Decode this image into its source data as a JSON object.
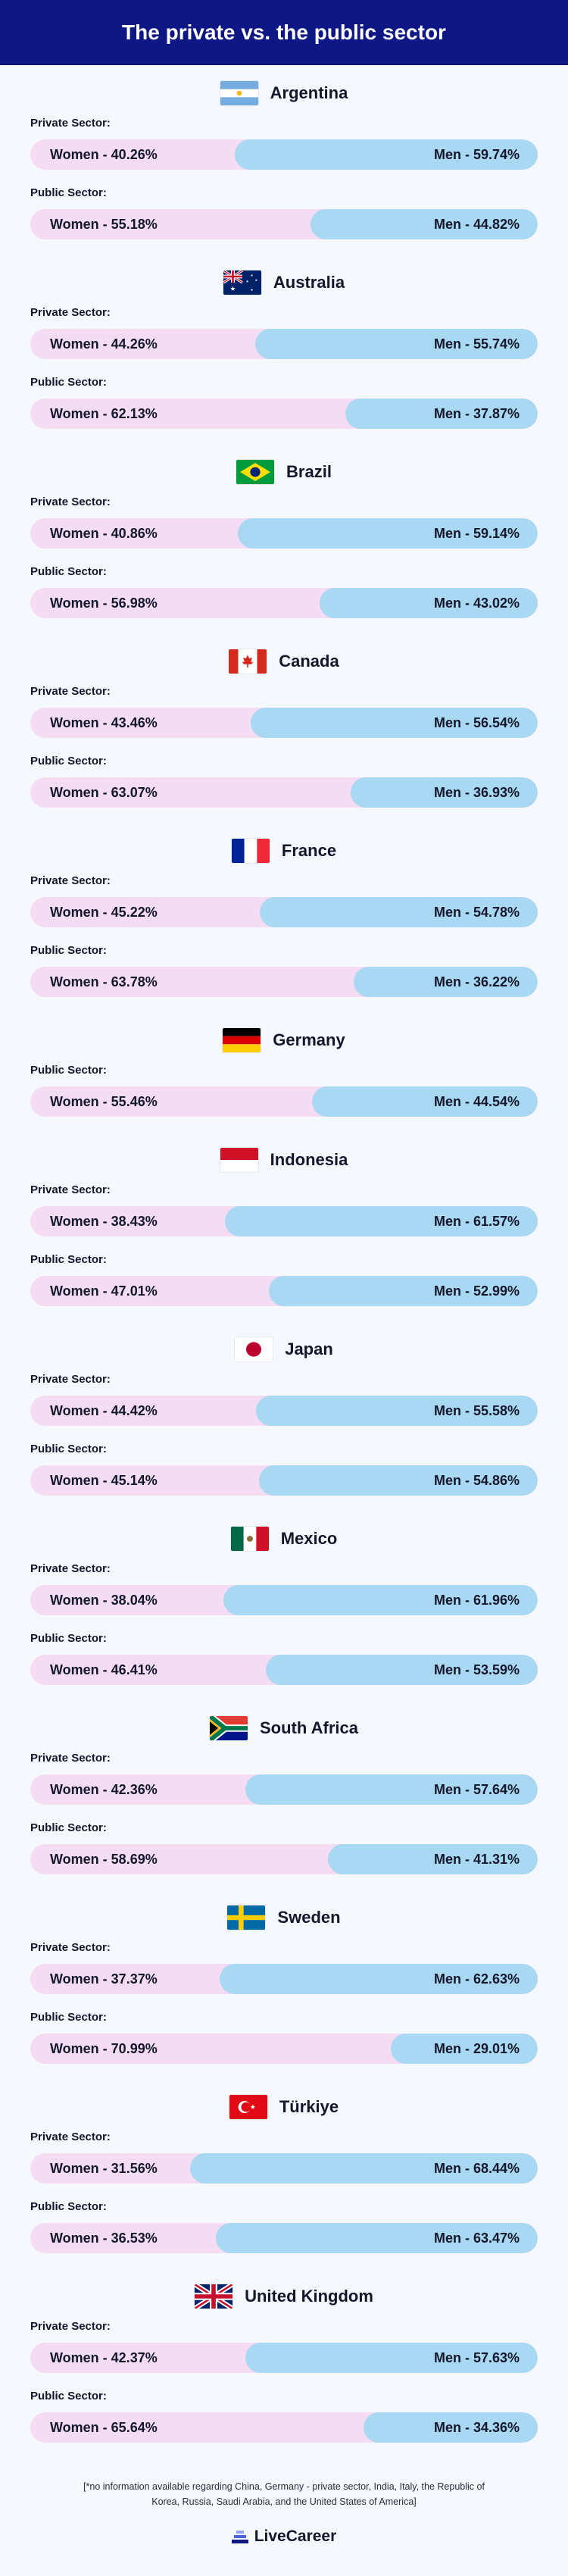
{
  "title": "The private vs. the public sector",
  "footnote": "[*no information available regarding China, Germany - private sector, India, Italy, the Republic of Korea, Russia, Saudi Arabia, and the United States of America]",
  "brand": "LiveCareer",
  "colors": {
    "header": "#0f1785",
    "women": "#f4dcf4",
    "men": "#a8d8f2",
    "background": "#f5f8fd"
  },
  "chart_data": {
    "type": "bar",
    "title": "The private vs. the public sector",
    "series_names": [
      "Women",
      "Men"
    ],
    "countries": [
      {
        "name": "Argentina",
        "flag": "argentina-flag",
        "sectors": [
          {
            "label": "Private Sector:",
            "women": 40.26,
            "men": 59.74,
            "women_text": "Women - 40.26%",
            "men_text": "Men - 59.74%"
          },
          {
            "label": "Public Sector:",
            "women": 55.18,
            "men": 44.82,
            "women_text": "Women - 55.18%",
            "men_text": "Men - 44.82%"
          }
        ]
      },
      {
        "name": "Australia",
        "flag": "australia-flag",
        "sectors": [
          {
            "label": "Private Sector:",
            "women": 44.26,
            "men": 55.74,
            "women_text": "Women - 44.26%",
            "men_text": "Men - 55.74%"
          },
          {
            "label": "Public Sector:",
            "women": 62.13,
            "men": 37.87,
            "women_text": "Women - 62.13%",
            "men_text": "Men - 37.87%"
          }
        ]
      },
      {
        "name": "Brazil",
        "flag": "brazil-flag",
        "sectors": [
          {
            "label": "Private Sector:",
            "women": 40.86,
            "men": 59.14,
            "women_text": "Women - 40.86%",
            "men_text": "Men - 59.14%"
          },
          {
            "label": "Public Sector:",
            "women": 56.98,
            "men": 43.02,
            "women_text": "Women - 56.98%",
            "men_text": "Men - 43.02%"
          }
        ]
      },
      {
        "name": "Canada",
        "flag": "canada-flag",
        "sectors": [
          {
            "label": "Private Sector:",
            "women": 43.46,
            "men": 56.54,
            "women_text": "Women - 43.46%",
            "men_text": "Men - 56.54%"
          },
          {
            "label": "Public Sector:",
            "women": 63.07,
            "men": 36.93,
            "women_text": "Women - 63.07%",
            "men_text": "Men - 36.93%"
          }
        ]
      },
      {
        "name": "France",
        "flag": "france-flag",
        "sectors": [
          {
            "label": "Private Sector:",
            "women": 45.22,
            "men": 54.78,
            "women_text": "Women - 45.22%",
            "men_text": "Men - 54.78%"
          },
          {
            "label": "Public Sector:",
            "women": 63.78,
            "men": 36.22,
            "women_text": "Women - 63.78%",
            "men_text": "Men - 36.22%"
          }
        ]
      },
      {
        "name": "Germany",
        "flag": "germany-flag",
        "sectors": [
          {
            "label": "Public Sector:",
            "women": 55.46,
            "men": 44.54,
            "women_text": "Women - 55.46%",
            "men_text": "Men - 44.54%"
          }
        ]
      },
      {
        "name": "Indonesia",
        "flag": "indonesia-flag",
        "sectors": [
          {
            "label": "Private Sector:",
            "women": 38.43,
            "men": 61.57,
            "women_text": "Women - 38.43%",
            "men_text": "Men - 61.57%"
          },
          {
            "label": "Public Sector:",
            "women": 47.01,
            "men": 52.99,
            "women_text": "Women - 47.01%",
            "men_text": "Men - 52.99%"
          }
        ]
      },
      {
        "name": "Japan",
        "flag": "japan-flag",
        "sectors": [
          {
            "label": "Private Sector:",
            "women": 44.42,
            "men": 55.58,
            "women_text": "Women - 44.42%",
            "men_text": "Men - 55.58%"
          },
          {
            "label": "Public Sector:",
            "women": 45.14,
            "men": 54.86,
            "women_text": "Women - 45.14%",
            "men_text": "Men - 54.86%"
          }
        ]
      },
      {
        "name": "Mexico",
        "flag": "mexico-flag",
        "sectors": [
          {
            "label": "Private Sector:",
            "women": 38.04,
            "men": 61.96,
            "women_text": "Women - 38.04%",
            "men_text": "Men - 61.96%"
          },
          {
            "label": "Public Sector:",
            "women": 46.41,
            "men": 53.59,
            "women_text": "Women - 46.41%",
            "men_text": "Men - 53.59%"
          }
        ]
      },
      {
        "name": "South Africa",
        "flag": "south-africa-flag",
        "sectors": [
          {
            "label": "Private Sector:",
            "women": 42.36,
            "men": 57.64,
            "women_text": "Women - 42.36%",
            "men_text": "Men - 57.64%"
          },
          {
            "label": "Public Sector:",
            "women": 58.69,
            "men": 41.31,
            "women_text": "Women - 58.69%",
            "men_text": "Men - 41.31%"
          }
        ]
      },
      {
        "name": "Sweden",
        "flag": "sweden-flag",
        "sectors": [
          {
            "label": "Private Sector:",
            "women": 37.37,
            "men": 62.63,
            "women_text": "Women - 37.37%",
            "men_text": "Men - 62.63%"
          },
          {
            "label": "Public Sector:",
            "women": 70.99,
            "men": 29.01,
            "women_text": "Women - 70.99%",
            "men_text": "Men - 29.01%"
          }
        ]
      },
      {
        "name": "Türkiye",
        "flag": "turkiye-flag",
        "sectors": [
          {
            "label": "Private Sector:",
            "women": 31.56,
            "men": 68.44,
            "women_text": "Women - 31.56%",
            "men_text": "Men - 68.44%"
          },
          {
            "label": "Public Sector:",
            "women": 36.53,
            "men": 63.47,
            "women_text": "Women - 36.53%",
            "men_text": "Men - 63.47%"
          }
        ]
      },
      {
        "name": "United Kingdom",
        "flag": "united-kingdom-flag",
        "sectors": [
          {
            "label": "Private Sector:",
            "women": 42.37,
            "men": 57.63,
            "women_text": "Women - 42.37%",
            "men_text": "Men - 57.63%"
          },
          {
            "label": "Public Sector:",
            "women": 65.64,
            "men": 34.36,
            "women_text": "Women - 65.64%",
            "men_text": "Men - 34.36%"
          }
        ]
      }
    ]
  }
}
